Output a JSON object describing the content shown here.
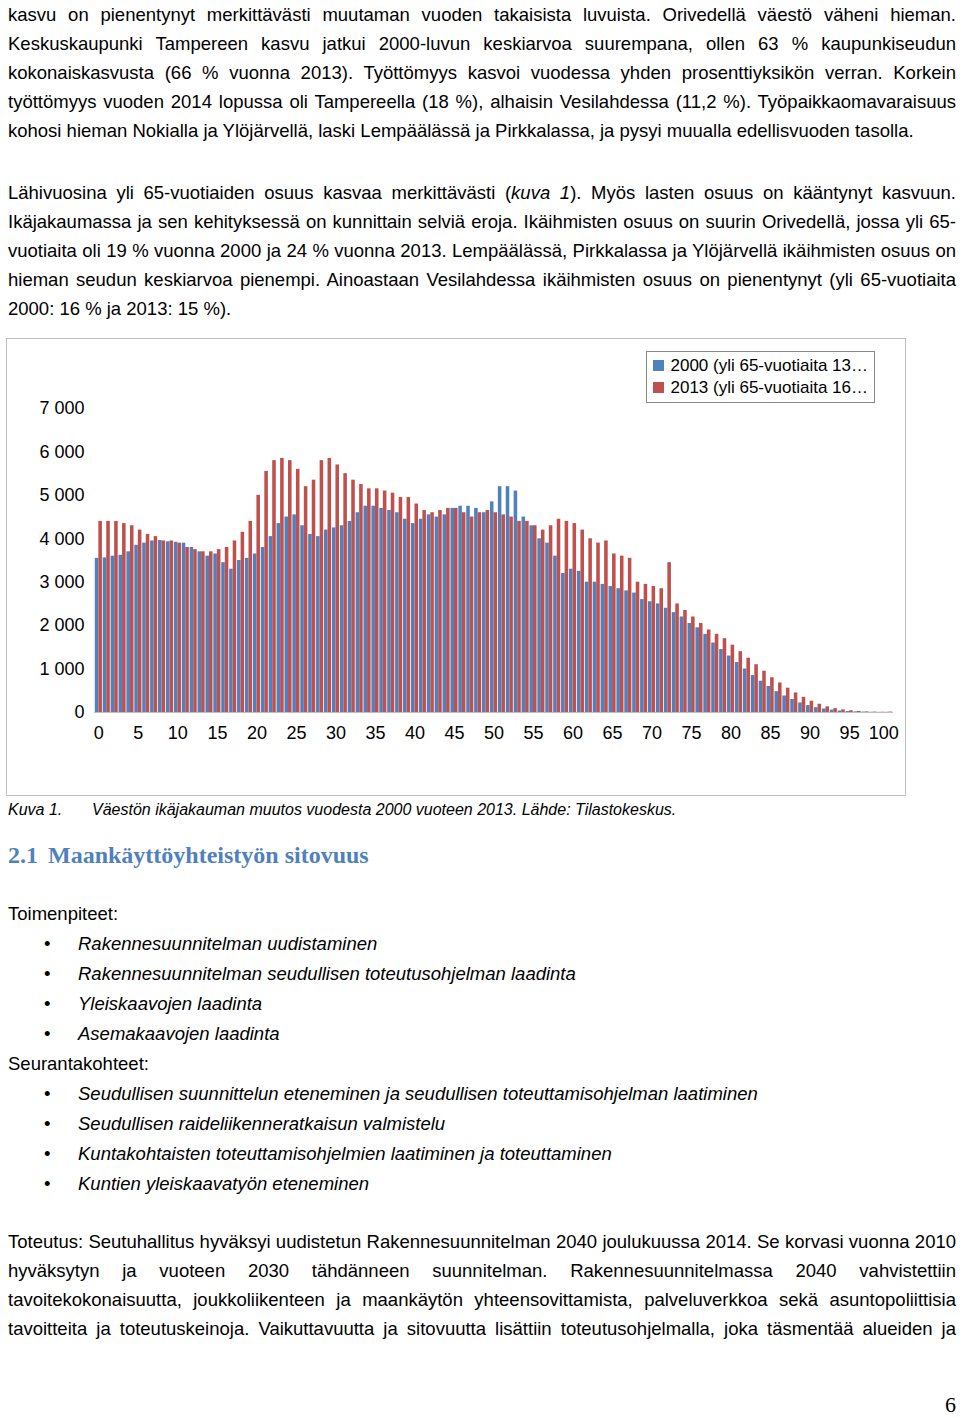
{
  "paragraphs_top": [
    [
      "kasvu on pienentynyt merkittävästi muutaman vuoden takaisista luvuista. Orivedellä väestö väheni hieman. Keskuskaupunki Tampereen kasvu jatkui 2000-luvun keskiarvoa suurempana, ollen 63 % kaupunkiseudun kokonaiskasvusta (66 % vuonna 2013). Työttömyys kasvoi vuodessa yhden prosenttiyksikön verran. Korkein työttömyys vuoden 2014 lopussa oli Tampereella (18 %), alhaisin Vesilahdessa (11,2 %). Työpaikkaomavaraisuus kohosi hieman Nokialla ja Ylöjärvellä, laski Lempäälässä ja Pirkkalassa, ja pysyi muualla edellisvuoden tasolla."
    ],
    [
      "Lähivuosina yli 65-vuotiaiden osuus kasvaa merkittävästi (",
      {
        "em": "kuva 1"
      },
      "). Myös lasten osuus on kääntynyt kasvuun. Ikäjakaumassa ja sen kehityksessä on kunnittain selviä eroja. Ikäihmisten osuus on suurin Orivedellä, jossa yli 65-vuotiaita oli 19 % vuonna 2000 ja 24 % vuonna 2013. Lempäälässä, Pirkkalassa ja Ylöjärvellä ikäihmisten osuus on hieman seudun keskiarvoa pienempi. Ainoastaan Vesilahdessa ikäihmisten osuus on pienentynyt (yli 65-vuotiaita 2000: 16 % ja 2013: 15 %)."
    ]
  ],
  "chart_data": {
    "type": "bar",
    "categories": [
      "0",
      null,
      null,
      null,
      null,
      "5",
      null,
      null,
      null,
      null,
      "10",
      null,
      null,
      null,
      null,
      "15",
      null,
      null,
      null,
      null,
      "20",
      null,
      null,
      null,
      null,
      "25",
      null,
      null,
      null,
      null,
      "30",
      null,
      null,
      null,
      null,
      "35",
      null,
      null,
      null,
      null,
      "40",
      null,
      null,
      null,
      null,
      "45",
      null,
      null,
      null,
      null,
      "50",
      null,
      null,
      null,
      null,
      "55",
      null,
      null,
      null,
      null,
      "60",
      null,
      null,
      null,
      null,
      "65",
      null,
      null,
      null,
      null,
      "70",
      null,
      null,
      null,
      null,
      "75",
      null,
      null,
      null,
      null,
      "80",
      null,
      null,
      null,
      null,
      "85",
      null,
      null,
      null,
      null,
      "90",
      null,
      null,
      null,
      null,
      "95",
      null,
      null,
      null,
      null,
      "100 -"
    ],
    "series": [
      {
        "name": "2000 (yli 65-vuotiaita 13…",
        "color": "#4f81bd",
        "values": [
          3550,
          3560,
          3600,
          3620,
          3700,
          3850,
          3900,
          3950,
          3960,
          3930,
          3920,
          3900,
          3800,
          3700,
          3600,
          3650,
          3450,
          3300,
          3500,
          3550,
          3650,
          3800,
          4050,
          4350,
          4500,
          4550,
          4300,
          4100,
          4050,
          4200,
          4250,
          4300,
          4400,
          4600,
          4750,
          4750,
          4700,
          4650,
          4600,
          4450,
          4350,
          4450,
          4550,
          4500,
          4550,
          4700,
          4750,
          4750,
          4700,
          4600,
          4850,
          5200,
          5200,
          5100,
          4500,
          4300,
          4000,
          3900,
          3600,
          3200,
          3300,
          3250,
          3000,
          3000,
          2950,
          2900,
          2850,
          2800,
          2750,
          2600,
          2550,
          2500,
          2400,
          2300,
          2200,
          2050,
          1950,
          1800,
          1600,
          1450,
          1300,
          1150,
          1000,
          850,
          720,
          600,
          480,
          380,
          300,
          220,
          160,
          110,
          80,
          55,
          35,
          22,
          15,
          10,
          6,
          4,
          5
        ]
      },
      {
        "name": "2013 (yli 65-vuotiaita 16…",
        "color": "#c0504d",
        "values": [
          4400,
          4400,
          4400,
          4350,
          4300,
          4200,
          4100,
          4050,
          3950,
          3950,
          3900,
          3800,
          3750,
          3700,
          3700,
          3750,
          3800,
          3950,
          4150,
          4400,
          5000,
          5550,
          5800,
          5850,
          5800,
          5600,
          5200,
          5350,
          5800,
          5850,
          5700,
          5500,
          5350,
          5250,
          5150,
          5150,
          5100,
          5050,
          4950,
          4950,
          4800,
          4650,
          4600,
          4650,
          4700,
          4700,
          4600,
          4500,
          4600,
          4650,
          4600,
          4550,
          4500,
          4400,
          4400,
          4300,
          4200,
          4300,
          4450,
          4400,
          4350,
          4200,
          4000,
          3900,
          3950,
          3650,
          3600,
          3550,
          3000,
          2950,
          2900,
          2850,
          3450,
          2500,
          2350,
          2200,
          2050,
          1900,
          1800,
          1700,
          1550,
          1400,
          1250,
          1100,
          950,
          800,
          680,
          560,
          450,
          350,
          260,
          190,
          130,
          90,
          60,
          40,
          25,
          15,
          10,
          6,
          10
        ]
      }
    ],
    "ylim": [
      0,
      7000
    ],
    "yticks": [
      0,
      {
        "value": 1000,
        "label": "1 000"
      },
      {
        "value": 2000,
        "label": "2 000"
      },
      {
        "value": 3000,
        "label": "3 000"
      },
      {
        "value": 4000,
        "label": "4 000"
      },
      {
        "value": 5000,
        "label": "5 000"
      },
      {
        "value": 6000,
        "label": "6 000"
      },
      {
        "value": 7000,
        "label": "7 000"
      }
    ],
    "grid": false,
    "legend": "top-right"
  },
  "caption": {
    "label": "Kuva 1.",
    "text": "Väestön ikäjakauman muutos vuodesta 2000 vuoteen 2013. Lähde: Tilastokeskus."
  },
  "section": {
    "number": "2.1",
    "title": "Maankäyttöyhteistyön sitovuus"
  },
  "lists": [
    {
      "heading": "Toimenpiteet:",
      "items": [
        "Rakennesuunnitelman uudistaminen",
        "Rakennesuunnitelman seudullisen toteutusohjelman laadinta",
        "Yleiskaavojen laadinta",
        "Asemakaavojen laadinta"
      ]
    },
    {
      "heading": "Seurantakohteet:",
      "items": [
        "Seudullisen suunnittelun eteneminen ja seudullisen toteuttamisohjelman laatiminen",
        "Seudullisen raideliikenneratkaisun valmistelu",
        "Kuntakohtaisten toteuttamisohjelmien laatiminen ja toteuttaminen",
        "Kuntien yleiskaavatyön eteneminen"
      ]
    }
  ],
  "paragraph_bottom": "Toteutus: Seutuhallitus hyväksyi uudistetun Rakennesuunnitelman 2040 joulukuussa 2014. Se korvasi vuonna 2010 hyväksytyn ja vuoteen 2030 tähdänneen suunnitelman. Rakennesuunnitelmassa 2040 vahvistettiin tavoitekokonaisuutta, joukkoliikenteen ja maankäytön yhteensovittamista, palveluverkkoa sekä asuntopoliittisia tavoitteita ja toteutuskeinoja. Vaikuttavuutta ja sitovuutta lisättiin toteutusohjelmalla, joka täsmentää alueiden ja",
  "page_number": 6
}
